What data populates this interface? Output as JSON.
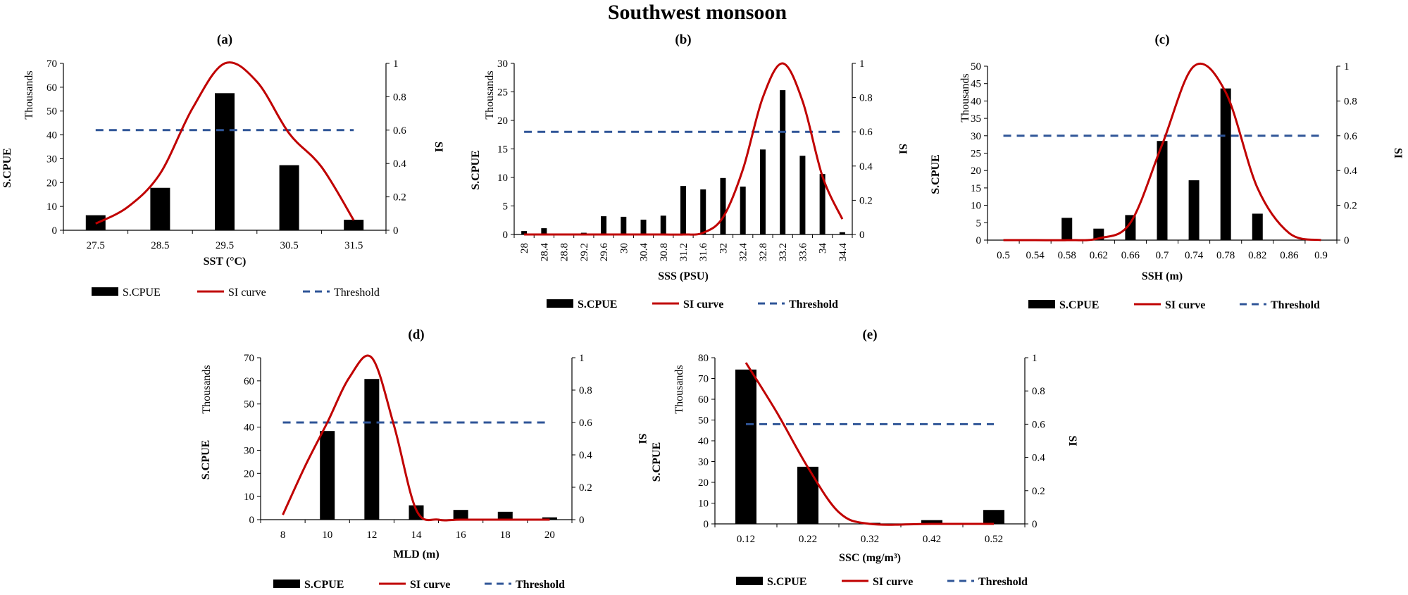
{
  "figure_title": "Southwest monsoon",
  "legend": {
    "bar": "S.CPUE",
    "curve": "SI curve",
    "threshold": "Threshold"
  },
  "colors": {
    "bar": "#000000",
    "curve": "#c00000",
    "threshold": "#2f5597"
  },
  "chart_data": [
    {
      "id": "a",
      "panel_label": "(a)",
      "type": "bar",
      "categories": [
        "27.5",
        "28.5",
        "29.5",
        "30.5",
        "31.5"
      ],
      "values": [
        6.3,
        17.8,
        57.5,
        27.3,
        4.4
      ],
      "xlabel": "SST (°C)",
      "ylabel": "S.CPUE",
      "y_units": "Thousands",
      "y2label": "SI",
      "ylim": [
        0,
        70
      ],
      "yticks": [
        "0",
        "10",
        "20",
        "30",
        "40",
        "50",
        "60",
        "70"
      ],
      "y2lim": [
        0,
        1
      ],
      "y2ticks": [
        "0",
        "0.2",
        "0.4",
        "0.6",
        "0.8",
        "1"
      ],
      "threshold": 0.6,
      "si_curve": [
        [
          0.0,
          0.04
        ],
        [
          0.5,
          0.14
        ],
        [
          1.0,
          0.34
        ],
        [
          1.5,
          0.73
        ],
        [
          2.0,
          1.0
        ],
        [
          2.5,
          0.89
        ],
        [
          3.0,
          0.58
        ],
        [
          3.5,
          0.38
        ],
        [
          4.0,
          0.06
        ]
      ],
      "legend_bold": false
    },
    {
      "id": "b",
      "panel_label": "(b)",
      "type": "bar",
      "categories": [
        "28",
        "28.4",
        "28.8",
        "29.2",
        "29.6",
        "30",
        "30.4",
        "30.8",
        "31.2",
        "31.6",
        "32",
        "32.4",
        "32.8",
        "33.2",
        "33.6",
        "34",
        "34.4"
      ],
      "values": [
        0.6,
        1.1,
        0,
        0.3,
        3.2,
        3.1,
        2.6,
        3.3,
        8.5,
        7.9,
        9.9,
        8.4,
        14.9,
        25.3,
        13.8,
        10.6,
        0.4
      ],
      "xlabel": "SSS (PSU)",
      "ylabel": "S.CPUE",
      "y_units": "Thousands",
      "y2label": "SI",
      "ylim": [
        0,
        30
      ],
      "yticks": [
        "0",
        "5",
        "10",
        "15",
        "20",
        "25",
        "30"
      ],
      "y2lim": [
        0,
        1
      ],
      "y2ticks": [
        "0",
        "0.2",
        "0.4",
        "0.6",
        "0.8",
        "1"
      ],
      "threshold": 0.6,
      "si_curve": [
        [
          0,
          0
        ],
        [
          1,
          0
        ],
        [
          2,
          0
        ],
        [
          3,
          0
        ],
        [
          4,
          0
        ],
        [
          5,
          0
        ],
        [
          6,
          0
        ],
        [
          7,
          0
        ],
        [
          8,
          0
        ],
        [
          9,
          0.01
        ],
        [
          10,
          0.1
        ],
        [
          11,
          0.38
        ],
        [
          12,
          0.8
        ],
        [
          13,
          1.0
        ],
        [
          14,
          0.78
        ],
        [
          15,
          0.34
        ],
        [
          16,
          0.09
        ]
      ],
      "legend_bold": true
    },
    {
      "id": "c",
      "panel_label": "(c)",
      "type": "bar",
      "categories": [
        "0.5",
        "0.54",
        "0.58",
        "0.62",
        "0.66",
        "0.7",
        "0.74",
        "0.78",
        "0.82",
        "0.86",
        "0.9"
      ],
      "values": [
        0,
        0,
        6.4,
        3.3,
        7.2,
        28.5,
        17.2,
        43.6,
        7.6,
        0,
        0
      ],
      "xlabel": "SSH (m)",
      "ylabel": "S.CPUE",
      "y_units": "Thousands",
      "y2label": "SI",
      "ylim": [
        0,
        50
      ],
      "yticks": [
        "0",
        "5",
        "10",
        "15",
        "20",
        "25",
        "30",
        "35",
        "40",
        "45",
        "50"
      ],
      "y2lim": [
        0,
        1
      ],
      "y2ticks": [
        "0",
        "0.2",
        "0.4",
        "0.6",
        "0.8",
        "1"
      ],
      "threshold": 0.6,
      "si_curve": [
        [
          0,
          0
        ],
        [
          1,
          0
        ],
        [
          2,
          0
        ],
        [
          3,
          0.01
        ],
        [
          4,
          0.1
        ],
        [
          5,
          0.55
        ],
        [
          6,
          1.0
        ],
        [
          7,
          0.85
        ],
        [
          8,
          0.3
        ],
        [
          9,
          0.04
        ],
        [
          10,
          0
        ]
      ],
      "legend_bold": true
    },
    {
      "id": "d",
      "panel_label": "(d)",
      "type": "bar",
      "categories": [
        "8",
        "10",
        "12",
        "14",
        "16",
        "18",
        "20"
      ],
      "values": [
        0,
        38.3,
        60.8,
        6.2,
        4.2,
        3.4,
        1.0
      ],
      "xlabel": "MLD (m)",
      "ylabel": "S.CPUE",
      "y_units": "Thousands",
      "y2label": "SI",
      "ylim": [
        0,
        70
      ],
      "yticks": [
        "0",
        "10",
        "20",
        "30",
        "40",
        "50",
        "60",
        "70"
      ],
      "y2lim": [
        0,
        1
      ],
      "y2ticks": [
        "0",
        "0.2",
        "0.4",
        "0.6",
        "0.8",
        "1"
      ],
      "threshold": 0.6,
      "si_curve": [
        [
          0,
          0.03
        ],
        [
          0.5,
          0.33
        ],
        [
          1,
          0.6
        ],
        [
          1.5,
          0.88
        ],
        [
          2,
          1.0
        ],
        [
          2.5,
          0.58
        ],
        [
          3,
          0.06
        ],
        [
          3.5,
          0.0
        ],
        [
          4,
          0
        ],
        [
          5,
          0
        ],
        [
          6,
          0
        ]
      ],
      "legend_bold": true
    },
    {
      "id": "e",
      "panel_label": "(e)",
      "type": "bar",
      "categories": [
        "0.12",
        "0.22",
        "0.32",
        "0.42",
        "0.52"
      ],
      "values": [
        74.3,
        27.5,
        0.5,
        1.8,
        6.7
      ],
      "xlabel": "SSC (mg/m³)",
      "ylabel": "S.CPUE",
      "y_units": "Thousands",
      "y2label": "SI",
      "ylim": [
        0,
        80
      ],
      "yticks": [
        "0",
        "10",
        "20",
        "30",
        "40",
        "50",
        "60",
        "70",
        "80"
      ],
      "y2lim": [
        0,
        1
      ],
      "y2ticks": [
        "0",
        "0.2",
        "0.4",
        "0.6",
        "0.8",
        "1"
      ],
      "threshold": 0.6,
      "si_curve": [
        [
          0,
          0.97
        ],
        [
          0.5,
          0.67
        ],
        [
          1,
          0.34
        ],
        [
          1.5,
          0.07
        ],
        [
          2,
          0
        ],
        [
          3,
          0
        ],
        [
          4,
          0
        ]
      ],
      "legend_bold": true
    }
  ]
}
